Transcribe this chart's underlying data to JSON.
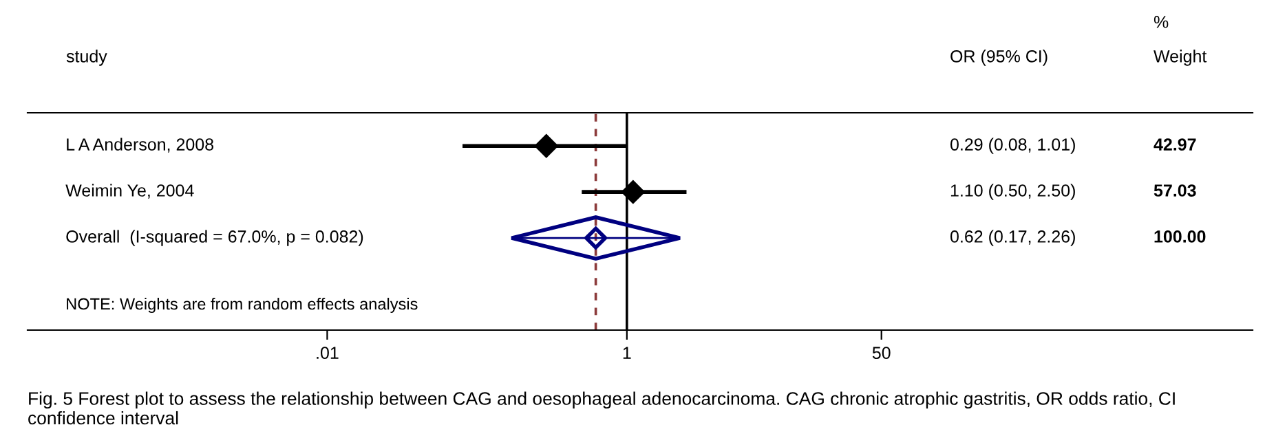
{
  "chart_data": {
    "type": "scatter",
    "orientation": "horizontal",
    "categories": [
      "L A Anderson, 2008",
      "Weimin Ye, 2004",
      "Overall  (I-squared = 67.0%, p = 0.082)"
    ],
    "series": [
      {
        "marker": "diamond",
        "color": "#000000",
        "values": [
          0.29,
          1.1,
          null
        ],
        "errors": [
          [
            0.08,
            1.01
          ],
          [
            0.5,
            2.5
          ],
          null
        ]
      },
      {
        "marker": "diamond",
        "color": "#000080",
        "values": [
          null,
          null,
          0.62
        ],
        "errors": [
          null,
          null,
          [
            0.17,
            2.26
          ]
        ]
      }
    ],
    "log": "x",
    "xlim": [
      0.0001,
      15000
    ],
    "xticks": [
      {
        "value": 0.01,
        "label": ".01"
      },
      1,
      50
    ],
    "ref_lines": [
      {
        "axis": "x",
        "value": 1,
        "color": "#000000",
        "line_style": "solid"
      },
      {
        "axis": "x",
        "value": 0.62,
        "color": "#8b3a3a",
        "line_style": "dashed"
      }
    ],
    "grid": false,
    "annotations": [
      "study",
      "OR (95% CI)",
      "%",
      "Weight",
      "0.29 (0.08, 1.01)",
      "1.10 (0.50, 2.50)",
      "0.62 (0.17, 2.26)",
      "42.97",
      "57.03",
      "100.00",
      "NOTE: Weights are from random effects analysis",
      "Fig. 5 Forest plot to assess the relationship between CAG and oesophageal adenocarcinoma. CAG chronic atrophic gastritis, OR odds ratio, CI confidence interval"
    ]
  }
}
